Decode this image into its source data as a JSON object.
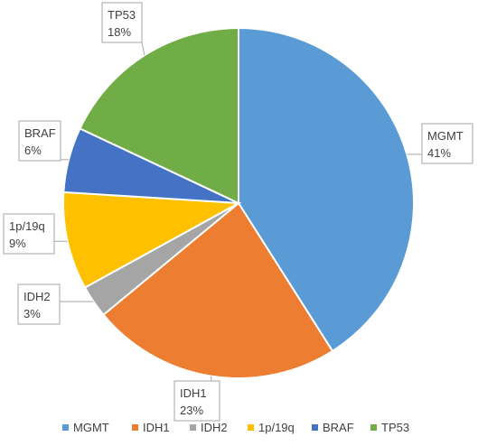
{
  "chart_data": {
    "type": "pie",
    "title": "",
    "legend_position": "bottom",
    "start_angle_deg": 0,
    "direction": "clockwise",
    "slices": [
      {
        "label": "MGMT",
        "value": 41,
        "pct_label": "41%",
        "color": "#5B9BD5"
      },
      {
        "label": "IDH1",
        "value": 23,
        "pct_label": "23%",
        "color": "#ED7D31"
      },
      {
        "label": "IDH2",
        "value": 3,
        "pct_label": "3%",
        "color": "#A5A5A5"
      },
      {
        "label": "1p/19q",
        "value": 9,
        "pct_label": "9%",
        "color": "#FFC000"
      },
      {
        "label": "BRAF",
        "value": 6,
        "pct_label": "6%",
        "color": "#4472C4"
      },
      {
        "label": "TP53",
        "value": 18,
        "pct_label": "18%",
        "color": "#70AD47"
      }
    ]
  }
}
